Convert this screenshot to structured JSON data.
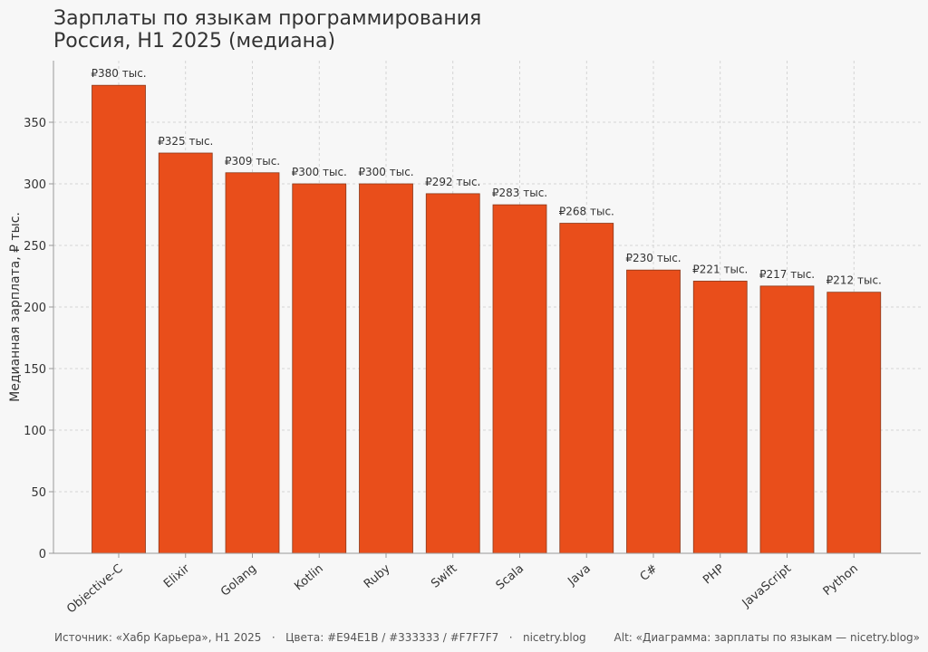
{
  "colors": {
    "accent": "#E94E1B",
    "text": "#333333",
    "background": "#F7F7F7",
    "grid": "#cccccc",
    "axis": "#999999"
  },
  "chart_data": {
    "type": "bar",
    "title": "Зарплаты по языкам программирования",
    "subtitle": "Россия, H1 2025 (медиана)",
    "xlabel": "",
    "ylabel": "Медианная зарплата, ₽ тыс.",
    "ylim": [
      0,
      400
    ],
    "yticks": [
      0,
      50,
      100,
      150,
      200,
      250,
      300,
      350
    ],
    "grid": true,
    "categories": [
      "Objective-C",
      "Elixir",
      "Golang",
      "Kotlin",
      "Ruby",
      "Swift",
      "Scala",
      "Java",
      "C#",
      "PHP",
      "JavaScript",
      "Python"
    ],
    "values": [
      380,
      325,
      309,
      300,
      300,
      292,
      283,
      268,
      230,
      221,
      217,
      212
    ],
    "data_labels": [
      "₽380 тыс.",
      "₽325 тыс.",
      "₽309 тыс.",
      "₽300 тыс.",
      "₽300 тыс.",
      "₽292 тыс.",
      "₽283 тыс.",
      "₽268 тыс.",
      "₽230 тыс.",
      "₽221 тыс.",
      "₽217 тыс.",
      "₽212 тыс."
    ]
  },
  "footer": {
    "source": "Источник: «Хабр Карьера», H1 2025   ·   Цвета: #E94E1B / #333333 / #F7F7F7   ·   nicetry.blog",
    "alt": "Alt: «Диаграмма: зарплаты по языкам — nicetry.blog»"
  }
}
